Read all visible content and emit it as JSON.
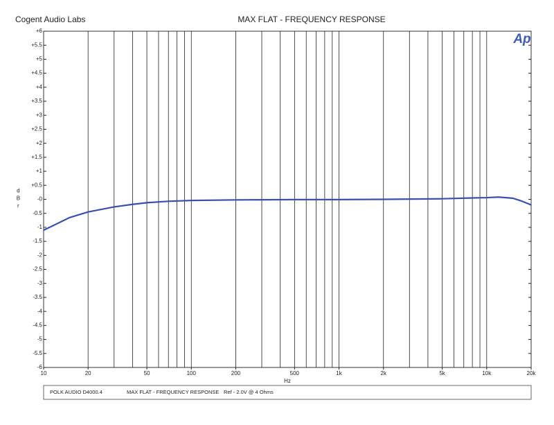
{
  "header": {
    "company": "Cogent Audio Labs",
    "logo": "Ap"
  },
  "footer": {
    "device": "POLK AUDIO D4000.4",
    "test": "MAX FLAT  -  FREQUENCY RESPONSE",
    "reference": "Ref - 2.0V @ 4 Ohms"
  },
  "chart_data": {
    "type": "line",
    "title": "MAX FLAT  -  FREQUENCY RESPONSE",
    "xlabel": "Hz",
    "ylabel": "dBr",
    "xscale": "log",
    "x": [
      10,
      12,
      15,
      20,
      30,
      40,
      50,
      70,
      100,
      200,
      500,
      1000,
      2000,
      5000,
      8000,
      10000,
      12000,
      15000,
      17000,
      20000
    ],
    "series": [
      {
        "name": "Level",
        "color": "#3b4fae",
        "values": [
          -1.1,
          -0.9,
          -0.65,
          -0.45,
          -0.27,
          -0.18,
          -0.12,
          -0.07,
          -0.04,
          -0.02,
          -0.01,
          -0.01,
          0,
          0.02,
          0.05,
          0.06,
          0.08,
          0.04,
          -0.05,
          -0.2
        ]
      }
    ],
    "xlim": [
      10,
      20000
    ],
    "xticks": [
      10,
      20,
      50,
      100,
      200,
      500,
      {
        "value": 1000,
        "label": "1k"
      },
      {
        "value": 2000,
        "label": "2k"
      },
      {
        "value": 5000,
        "label": "5k"
      },
      {
        "value": 10000,
        "label": "10k"
      },
      {
        "value": 20000,
        "label": "20k"
      }
    ],
    "xgrid": [
      20,
      30,
      40,
      50,
      60,
      70,
      80,
      90,
      100,
      200,
      300,
      400,
      500,
      600,
      700,
      800,
      900,
      1000,
      2000,
      3000,
      4000,
      5000,
      6000,
      7000,
      8000,
      9000,
      10000
    ],
    "ylim": [
      -6,
      6
    ],
    "yticks": [
      {
        "value": 6,
        "label": "+6"
      },
      {
        "value": 5.5,
        "label": "+5.5"
      },
      {
        "value": 5,
        "label": "+5"
      },
      {
        "value": 4.5,
        "label": "+4.5"
      },
      {
        "value": 4,
        "label": "+4"
      },
      {
        "value": 3.5,
        "label": "+3.5"
      },
      {
        "value": 3,
        "label": "+3"
      },
      {
        "value": 2.5,
        "label": "+2.5"
      },
      {
        "value": 2,
        "label": "+2"
      },
      {
        "value": 1.5,
        "label": "+1.5"
      },
      {
        "value": 1,
        "label": "+1"
      },
      {
        "value": 0.5,
        "label": "+0.5"
      },
      {
        "value": 0,
        "label": "-0"
      },
      -0.5,
      -1,
      -1.5,
      -2,
      -2.5,
      -3,
      -3.5,
      -4,
      -4.5,
      -5,
      -5.5,
      -6
    ],
    "grid": "x"
  }
}
